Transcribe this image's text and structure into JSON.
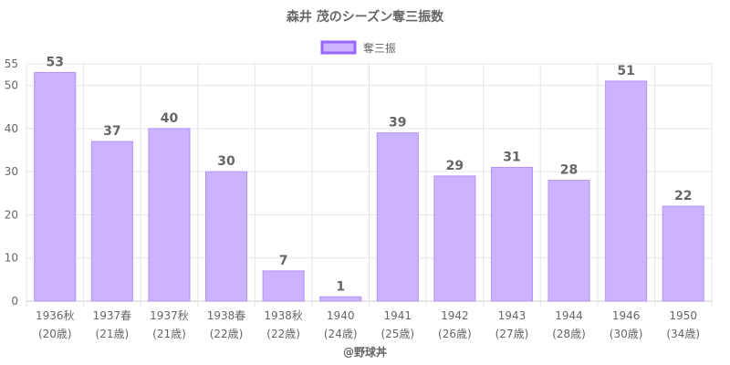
{
  "chart_data": {
    "type": "bar",
    "title": "森井 茂のシーズン奪三振数",
    "categories": [
      [
        "1936秋",
        "(20歳)"
      ],
      [
        "1937春",
        "(21歳)"
      ],
      [
        "1937秋",
        "(21歳)"
      ],
      [
        "1938春",
        "(22歳)"
      ],
      [
        "1938秋",
        "(22歳)"
      ],
      [
        "1940",
        "(24歳)"
      ],
      [
        "1941",
        "(25歳)"
      ],
      [
        "1942",
        "(26歳)"
      ],
      [
        "1943",
        "(27歳)"
      ],
      [
        "1944",
        "(28歳)"
      ],
      [
        "1946",
        "(30歳)"
      ],
      [
        "1950",
        "(34歳)"
      ]
    ],
    "series": [
      {
        "name": "奪三振",
        "values": [
          53,
          37,
          40,
          30,
          7,
          1,
          39,
          29,
          31,
          28,
          51,
          22
        ]
      }
    ],
    "ylim": [
      0,
      55
    ],
    "yticks": [
      0,
      10,
      20,
      30,
      40,
      50,
      55
    ],
    "grid": true,
    "legend": "top-center",
    "bar_color": "#cbb3ff",
    "bar_border_color": "#b393f7",
    "legend_border_color": "#9966ff",
    "credit": "@野球丼"
  }
}
